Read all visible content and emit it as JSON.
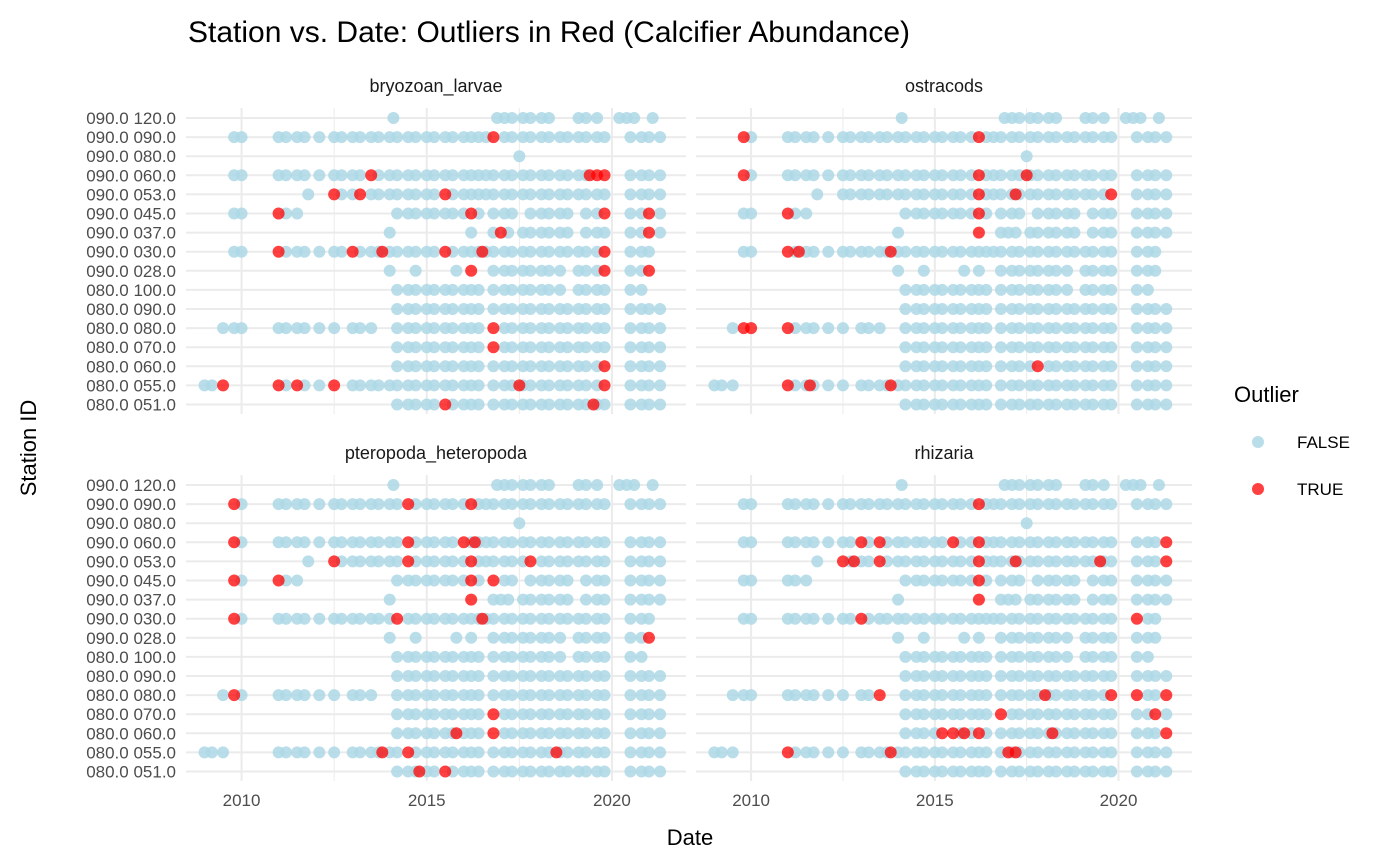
{
  "chart_data": {
    "type": "scatter",
    "title": "Station vs. Date: Outliers in Red (Calcifier Abundance)",
    "xlabel": "Date",
    "ylabel": "Station ID",
    "xlim": [
      2008.5,
      2022.0
    ],
    "x_ticks": [
      "2010",
      "2015",
      "2020"
    ],
    "stations": [
      "090.0 120.0",
      "090.0 090.0",
      "090.0 080.0",
      "090.0 060.0",
      "090.0 053.0",
      "090.0 045.0",
      "090.0 037.0",
      "090.0 030.0",
      "090.0 028.0",
      "080.0 100.0",
      "080.0 090.0",
      "080.0 080.0",
      "080.0 070.0",
      "080.0 060.0",
      "080.0 055.0",
      "080.0 051.0"
    ],
    "legend": {
      "title": "Outlier",
      "position": "right",
      "items": [
        {
          "label": "FALSE",
          "color": "#add8e6"
        },
        {
          "label": "TRUE",
          "color": "#ff0000"
        }
      ]
    },
    "colors": {
      "normal": "#add8e6",
      "outlier": "#ff0000"
    },
    "grid": true,
    "panels": [
      {
        "name": "bryozoan_larvae",
        "outliers": [
          [
            "090.0 090.0",
            2016.8
          ],
          [
            "090.0 060.0",
            2013.5
          ],
          [
            "090.0 060.0",
            2019.4
          ],
          [
            "090.0 060.0",
            2019.6
          ],
          [
            "090.0 060.0",
            2019.8
          ],
          [
            "090.0 053.0",
            2012.5
          ],
          [
            "090.0 053.0",
            2013.2
          ],
          [
            "090.0 053.0",
            2015.5
          ],
          [
            "090.0 045.0",
            2011.0
          ],
          [
            "090.0 045.0",
            2016.2
          ],
          [
            "090.0 045.0",
            2019.8
          ],
          [
            "090.0 045.0",
            2021.0
          ],
          [
            "090.0 037.0",
            2017.0
          ],
          [
            "090.0 037.0",
            2021.0
          ],
          [
            "090.0 030.0",
            2011.0
          ],
          [
            "090.0 030.0",
            2013.0
          ],
          [
            "090.0 030.0",
            2013.8
          ],
          [
            "090.0 030.0",
            2015.5
          ],
          [
            "090.0 030.0",
            2016.5
          ],
          [
            "090.0 030.0",
            2019.8
          ],
          [
            "090.0 028.0",
            2016.2
          ],
          [
            "090.0 028.0",
            2019.8
          ],
          [
            "090.0 028.0",
            2021.0
          ],
          [
            "080.0 080.0",
            2016.8
          ],
          [
            "080.0 070.0",
            2016.8
          ],
          [
            "080.0 060.0",
            2019.8
          ],
          [
            "080.0 055.0",
            2009.5
          ],
          [
            "080.0 055.0",
            2011.0
          ],
          [
            "080.0 055.0",
            2011.5
          ],
          [
            "080.0 055.0",
            2012.5
          ],
          [
            "080.0 055.0",
            2017.5
          ],
          [
            "080.0 055.0",
            2019.8
          ],
          [
            "080.0 051.0",
            2015.5
          ],
          [
            "080.0 051.0",
            2019.5
          ]
        ]
      },
      {
        "name": "ostracods",
        "outliers": [
          [
            "090.0 090.0",
            2009.8
          ],
          [
            "090.0 090.0",
            2016.2
          ],
          [
            "090.0 060.0",
            2009.8
          ],
          [
            "090.0 060.0",
            2016.2
          ],
          [
            "090.0 060.0",
            2017.5
          ],
          [
            "090.0 053.0",
            2016.2
          ],
          [
            "090.0 053.0",
            2017.2
          ],
          [
            "090.0 053.0",
            2019.8
          ],
          [
            "090.0 045.0",
            2011.0
          ],
          [
            "090.0 045.0",
            2016.2
          ],
          [
            "090.0 037.0",
            2016.2
          ],
          [
            "090.0 030.0",
            2011.0
          ],
          [
            "090.0 030.0",
            2011.3
          ],
          [
            "090.0 030.0",
            2013.8
          ],
          [
            "080.0 080.0",
            2009.8
          ],
          [
            "080.0 080.0",
            2010.0
          ],
          [
            "080.0 080.0",
            2011.0
          ],
          [
            "080.0 060.0",
            2017.8
          ],
          [
            "080.0 055.0",
            2011.0
          ],
          [
            "080.0 055.0",
            2011.6
          ],
          [
            "080.0 055.0",
            2013.8
          ]
        ]
      },
      {
        "name": "pteropoda_heteropoda",
        "outliers": [
          [
            "090.0 090.0",
            2009.8
          ],
          [
            "090.0 090.0",
            2014.5
          ],
          [
            "090.0 090.0",
            2016.2
          ],
          [
            "090.0 060.0",
            2009.8
          ],
          [
            "090.0 060.0",
            2014.5
          ],
          [
            "090.0 060.0",
            2016.0
          ],
          [
            "090.0 060.0",
            2016.3
          ],
          [
            "090.0 053.0",
            2012.5
          ],
          [
            "090.0 053.0",
            2014.5
          ],
          [
            "090.0 053.0",
            2016.2
          ],
          [
            "090.0 053.0",
            2017.8
          ],
          [
            "090.0 045.0",
            2009.8
          ],
          [
            "090.0 045.0",
            2011.0
          ],
          [
            "090.0 045.0",
            2016.2
          ],
          [
            "090.0 045.0",
            2016.8
          ],
          [
            "090.0 037.0",
            2016.2
          ],
          [
            "090.0 030.0",
            2009.8
          ],
          [
            "090.0 030.0",
            2014.2
          ],
          [
            "090.0 030.0",
            2016.5
          ],
          [
            "090.0 028.0",
            2021.0
          ],
          [
            "080.0 080.0",
            2009.8
          ],
          [
            "080.0 070.0",
            2016.8
          ],
          [
            "080.0 060.0",
            2015.8
          ],
          [
            "080.0 060.0",
            2016.8
          ],
          [
            "080.0 055.0",
            2013.8
          ],
          [
            "080.0 055.0",
            2014.5
          ],
          [
            "080.0 055.0",
            2018.5
          ],
          [
            "080.0 051.0",
            2014.8
          ],
          [
            "080.0 051.0",
            2015.5
          ]
        ]
      },
      {
        "name": "rhizaria",
        "outliers": [
          [
            "090.0 090.0",
            2016.2
          ],
          [
            "090.0 060.0",
            2013.0
          ],
          [
            "090.0 060.0",
            2013.5
          ],
          [
            "090.0 060.0",
            2015.5
          ],
          [
            "090.0 060.0",
            2016.2
          ],
          [
            "090.0 060.0",
            2021.3
          ],
          [
            "090.0 053.0",
            2012.5
          ],
          [
            "090.0 053.0",
            2012.8
          ],
          [
            "090.0 053.0",
            2013.5
          ],
          [
            "090.0 053.0",
            2016.2
          ],
          [
            "090.0 053.0",
            2017.2
          ],
          [
            "090.0 053.0",
            2019.5
          ],
          [
            "090.0 053.0",
            2021.3
          ],
          [
            "090.0 045.0",
            2016.2
          ],
          [
            "090.0 037.0",
            2016.2
          ],
          [
            "090.0 030.0",
            2013.0
          ],
          [
            "090.0 030.0",
            2020.5
          ],
          [
            "080.0 080.0",
            2013.5
          ],
          [
            "080.0 080.0",
            2018.0
          ],
          [
            "080.0 080.0",
            2019.8
          ],
          [
            "080.0 080.0",
            2020.5
          ],
          [
            "080.0 080.0",
            2021.3
          ],
          [
            "080.0 070.0",
            2016.8
          ],
          [
            "080.0 070.0",
            2021.0
          ],
          [
            "080.0 060.0",
            2015.2
          ],
          [
            "080.0 060.0",
            2015.5
          ],
          [
            "080.0 060.0",
            2015.8
          ],
          [
            "080.0 060.0",
            2016.2
          ],
          [
            "080.0 060.0",
            2018.2
          ],
          [
            "080.0 060.0",
            2021.3
          ],
          [
            "080.0 055.0",
            2011.0
          ],
          [
            "080.0 055.0",
            2013.8
          ],
          [
            "080.0 055.0",
            2017.0
          ],
          [
            "080.0 055.0",
            2017.2
          ]
        ]
      }
    ],
    "sampling_dates": {
      "090.0 120.0": [
        2014.1,
        2016.9,
        2017.1,
        2017.3,
        2017.6,
        2017.8,
        2018.1,
        2018.3,
        2019.1,
        2019.3,
        2019.6,
        2020.2,
        2020.4,
        2020.6,
        2021.1
      ],
      "090.0 090.0": [
        2009.8,
        2010.0,
        2011.0,
        2011.2,
        2011.5,
        2011.7,
        2012.1,
        2012.5,
        2012.7,
        2013.0,
        2013.2,
        2013.5,
        2013.7,
        2014.0,
        2014.2,
        2014.5,
        2014.7,
        2015.0,
        2015.2,
        2015.5,
        2015.7,
        2016.0,
        2016.2,
        2016.4,
        2016.6,
        2016.8,
        2017.1,
        2017.3,
        2017.6,
        2017.8,
        2018.1,
        2018.3,
        2018.6,
        2018.8,
        2019.1,
        2019.3,
        2019.6,
        2019.8,
        2020.5,
        2020.8,
        2021.0,
        2021.3
      ],
      "090.0 080.0": [
        2017.5
      ],
      "090.0 060.0": [
        2009.8,
        2010.0,
        2011.0,
        2011.2,
        2011.5,
        2011.7,
        2012.1,
        2012.5,
        2012.7,
        2013.0,
        2013.2,
        2013.5,
        2013.7,
        2014.0,
        2014.2,
        2014.5,
        2014.7,
        2015.0,
        2015.2,
        2015.5,
        2015.7,
        2016.0,
        2016.2,
        2016.4,
        2016.6,
        2016.8,
        2017.1,
        2017.3,
        2017.6,
        2017.8,
        2018.1,
        2018.3,
        2018.6,
        2018.8,
        2019.1,
        2019.3,
        2019.6,
        2019.8,
        2020.5,
        2020.8,
        2021.0,
        2021.3
      ],
      "090.0 053.0": [
        2011.8,
        2012.5,
        2012.7,
        2013.0,
        2013.2,
        2013.5,
        2013.7,
        2014.0,
        2014.2,
        2014.5,
        2014.7,
        2015.0,
        2015.2,
        2015.5,
        2015.7,
        2016.0,
        2016.2,
        2016.4,
        2016.6,
        2016.8,
        2017.1,
        2017.3,
        2017.6,
        2017.8,
        2018.1,
        2018.3,
        2018.6,
        2018.8,
        2019.1,
        2019.3,
        2019.6,
        2019.8,
        2020.5,
        2020.8,
        2021.0,
        2021.3
      ],
      "090.0 045.0": [
        2009.8,
        2010.0,
        2011.0,
        2011.2,
        2011.5,
        2014.2,
        2014.5,
        2014.7,
        2015.0,
        2015.2,
        2015.5,
        2015.7,
        2016.0,
        2016.2,
        2016.4,
        2016.8,
        2017.1,
        2017.3,
        2017.8,
        2018.1,
        2018.3,
        2018.6,
        2018.8,
        2019.3,
        2019.6,
        2019.8,
        2020.5,
        2020.8,
        2021.0,
        2021.3
      ],
      "090.0 037.0": [
        2014.0,
        2016.2,
        2016.8,
        2017.0,
        2017.2,
        2017.6,
        2017.8,
        2018.1,
        2018.3,
        2018.6,
        2018.8,
        2019.3,
        2019.6,
        2019.8,
        2020.5,
        2020.8,
        2021.0,
        2021.3
      ],
      "090.0 030.0": [
        2009.8,
        2010.0,
        2011.0,
        2011.2,
        2011.5,
        2011.7,
        2012.1,
        2012.5,
        2012.7,
        2013.0,
        2013.2,
        2013.5,
        2013.7,
        2014.0,
        2014.2,
        2014.5,
        2014.7,
        2015.0,
        2015.2,
        2015.5,
        2015.7,
        2016.0,
        2016.2,
        2016.4,
        2016.6,
        2016.8,
        2017.1,
        2017.3,
        2017.6,
        2017.8,
        2018.1,
        2018.3,
        2018.6,
        2018.8,
        2019.1,
        2019.3,
        2019.6,
        2019.8,
        2020.5,
        2020.8,
        2021.0
      ],
      "090.0 028.0": [
        2014.0,
        2014.7,
        2015.8,
        2016.2,
        2016.8,
        2017.1,
        2017.3,
        2017.6,
        2017.8,
        2018.1,
        2018.3,
        2018.6,
        2019.1,
        2019.3,
        2019.6,
        2019.8,
        2020.5,
        2020.8,
        2021.0
      ],
      "080.0 100.0": [
        2014.2,
        2014.5,
        2014.7,
        2015.0,
        2015.2,
        2015.5,
        2015.7,
        2016.0,
        2016.2,
        2016.4,
        2016.8,
        2017.1,
        2017.3,
        2017.6,
        2017.8,
        2018.1,
        2018.3,
        2018.6,
        2019.1,
        2019.3,
        2019.6,
        2019.8,
        2020.5,
        2020.8
      ],
      "080.0 090.0": [
        2014.2,
        2014.5,
        2014.7,
        2015.0,
        2015.2,
        2015.5,
        2015.7,
        2016.0,
        2016.2,
        2016.4,
        2016.8,
        2017.1,
        2017.3,
        2017.6,
        2017.8,
        2018.1,
        2018.3,
        2018.6,
        2018.8,
        2019.1,
        2019.3,
        2019.6,
        2019.8,
        2020.5,
        2020.8,
        2021.0,
        2021.3
      ],
      "080.0 080.0": [
        2009.5,
        2009.8,
        2010.0,
        2011.0,
        2011.2,
        2011.5,
        2011.7,
        2012.1,
        2012.5,
        2013.0,
        2013.2,
        2013.5,
        2014.2,
        2014.5,
        2014.7,
        2015.0,
        2015.2,
        2015.5,
        2015.7,
        2016.0,
        2016.2,
        2016.4,
        2016.8,
        2017.1,
        2017.3,
        2017.6,
        2017.8,
        2018.1,
        2018.3,
        2018.6,
        2018.8,
        2019.1,
        2019.3,
        2019.6,
        2019.8,
        2020.5,
        2020.8,
        2021.0,
        2021.3
      ],
      "080.0 070.0": [
        2014.2,
        2014.5,
        2014.7,
        2015.0,
        2015.2,
        2015.5,
        2015.7,
        2016.0,
        2016.2,
        2016.4,
        2016.8,
        2017.1,
        2017.3,
        2017.6,
        2017.8,
        2018.1,
        2018.3,
        2018.6,
        2018.8,
        2019.1,
        2019.3,
        2019.6,
        2019.8,
        2020.5,
        2020.8,
        2021.0,
        2021.3
      ],
      "080.0 060.0": [
        2014.2,
        2014.5,
        2014.7,
        2015.0,
        2015.2,
        2015.5,
        2015.7,
        2016.0,
        2016.2,
        2016.4,
        2016.8,
        2017.1,
        2017.3,
        2017.6,
        2017.8,
        2018.1,
        2018.3,
        2018.6,
        2018.8,
        2019.1,
        2019.3,
        2019.6,
        2019.8,
        2020.5,
        2020.8,
        2021.0,
        2021.3
      ],
      "080.0 055.0": [
        2009.0,
        2009.2,
        2009.5,
        2011.0,
        2011.2,
        2011.5,
        2011.7,
        2012.1,
        2012.5,
        2013.0,
        2013.2,
        2013.5,
        2013.7,
        2014.0,
        2014.2,
        2014.5,
        2014.7,
        2015.0,
        2015.2,
        2015.5,
        2015.7,
        2016.0,
        2016.2,
        2016.4,
        2016.8,
        2017.1,
        2017.3,
        2017.6,
        2017.8,
        2018.1,
        2018.3,
        2018.6,
        2018.8,
        2019.1,
        2019.3,
        2019.6,
        2019.8,
        2020.5,
        2020.8,
        2021.0,
        2021.3
      ],
      "080.0 051.0": [
        2014.2,
        2014.5,
        2014.7,
        2015.0,
        2015.2,
        2015.5,
        2015.7,
        2016.0,
        2016.2,
        2016.4,
        2016.8,
        2017.1,
        2017.3,
        2017.6,
        2017.8,
        2018.1,
        2018.3,
        2018.6,
        2018.8,
        2019.1,
        2019.3,
        2019.6,
        2019.8,
        2020.5,
        2020.8,
        2021.0,
        2021.3
      ]
    }
  }
}
